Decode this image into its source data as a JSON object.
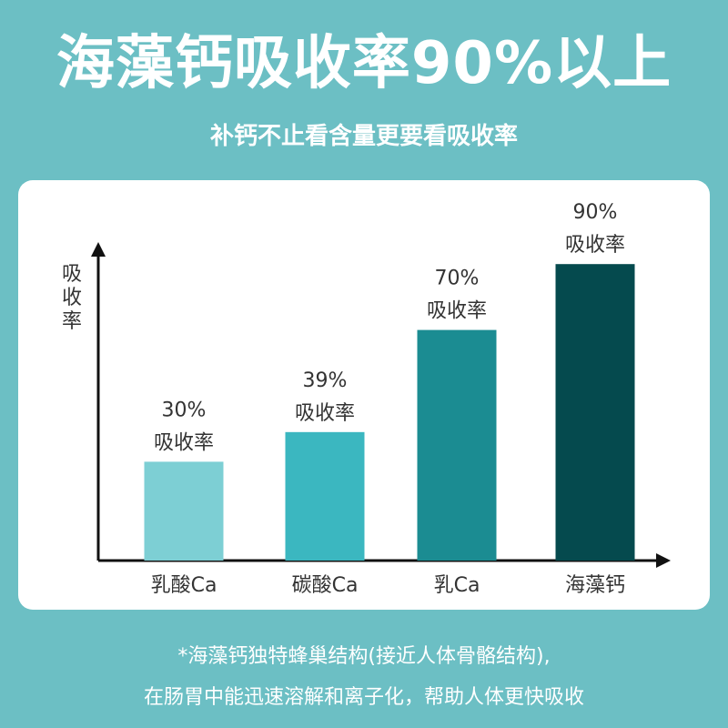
{
  "header": {
    "title": "海藻钙吸收率90%以上",
    "subtitle": "补钙不止看含量更要看吸收率"
  },
  "chart_data": {
    "type": "bar",
    "categories": [
      "乳酸Ca",
      "碳酸Ca",
      "乳Ca",
      "海藻钙"
    ],
    "values": [
      30,
      39,
      70,
      90
    ],
    "value_labels": [
      "30%",
      "39%",
      "70%",
      "90%"
    ],
    "value_sublabel": "吸收率",
    "ylabel": "吸收率",
    "xlabel": "",
    "ylim": [
      0,
      100
    ],
    "unit": "%",
    "grid": false,
    "legend": "none",
    "colors": [
      "#7dcfd4",
      "#3bb7c0",
      "#1b8c92",
      "#054a4e"
    ],
    "label_color": "#333333",
    "axis_color": "#111111"
  },
  "footer": {
    "line1": "*海藻钙独特蜂巢结构(接近人体骨骼结构),",
    "line2": "在肠胃中能迅速溶解和离子化，帮助人体更快吸收"
  }
}
